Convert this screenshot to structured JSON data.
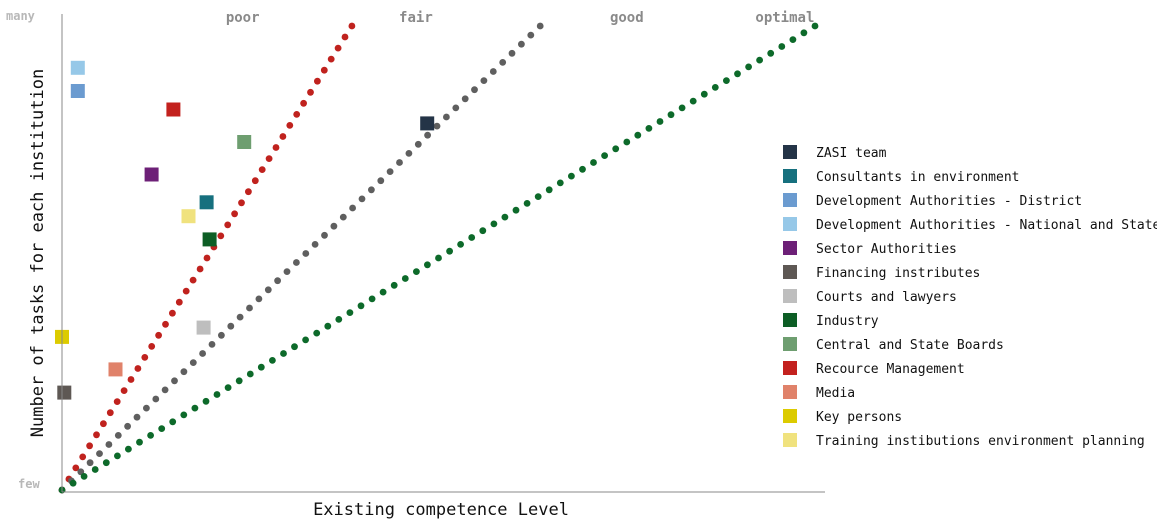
{
  "chart_data": {
    "type": "scatter",
    "xlabel": "Existing competence Level",
    "ylabel": "Number of tasks for each institution",
    "y_tick_labels": {
      "top": "many",
      "bottom": "few"
    },
    "xlim": [
      0,
      100
    ],
    "ylim": [
      0,
      100
    ],
    "grid": false,
    "legend_position": "right",
    "reference_lines": [
      {
        "label": "poor",
        "color": "#c0221e",
        "end": [
          38.5,
          100
        ]
      },
      {
        "label": "fair",
        "color": "#5f5f5f",
        "end": [
          63.5,
          100
        ]
      },
      {
        "label": "good",
        "color": "#0d6a2a",
        "end": [
          100,
          100
        ]
      }
    ],
    "zone_labels": [
      {
        "label": "poor",
        "x": 24
      },
      {
        "label": "fair",
        "x": 47
      },
      {
        "label": "good",
        "x": 75
      },
      {
        "label": "optimal",
        "x": 96
      }
    ],
    "series": [
      {
        "name": "ZASI team",
        "color": "#243447",
        "x": 48.5,
        "y": 79
      },
      {
        "name": "Consultants in environment",
        "color": "#16707e",
        "x": 19.2,
        "y": 62
      },
      {
        "name": "Development Authorities - District",
        "color": "#6b9bd0",
        "x": 2.1,
        "y": 86
      },
      {
        "name": "Development Authorities - National and State",
        "color": "#96c8e8",
        "x": 2.1,
        "y": 91
      },
      {
        "name": "Sector Authorities",
        "color": "#6d2077",
        "x": 11.9,
        "y": 68
      },
      {
        "name": "Financing instributes",
        "color": "#5e5854",
        "x": 0.3,
        "y": 21
      },
      {
        "name": "Courts and lawyers",
        "color": "#bebebe",
        "x": 18.8,
        "y": 35
      },
      {
        "name": "Industry",
        "color": "#0d5e25",
        "x": 19.6,
        "y": 54
      },
      {
        "name": "Central and State Boards",
        "color": "#6e9e70",
        "x": 24.2,
        "y": 75
      },
      {
        "name": "Recource Management",
        "color": "#c3211e",
        "x": 14.8,
        "y": 82
      },
      {
        "name": "Media",
        "color": "#e0826a",
        "x": 7.1,
        "y": 26
      },
      {
        "name": "Key persons",
        "color": "#dccb00",
        "x": 0,
        "y": 33
      },
      {
        "name": "Training instibutions environment planning",
        "color": "#f0e27e",
        "x": 16.8,
        "y": 59
      }
    ]
  }
}
